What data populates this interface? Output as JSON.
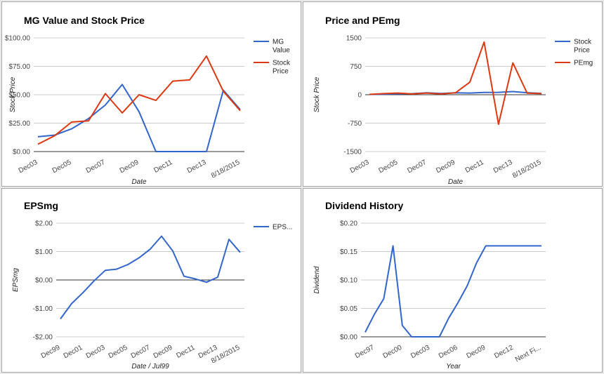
{
  "chart_data": [
    {
      "type": "line",
      "title": "MG Value and Stock Price",
      "xlabel": "Date",
      "ylabel": "Stock Price",
      "x_ticks": [
        "Dec03",
        "Dec05",
        "Dec07",
        "Dec09",
        "Dec11",
        "Dec13",
        "8/18/2015"
      ],
      "y_ticks": [
        "$0.00",
        "$25.00",
        "$50.00",
        "$75.00",
        "$100.00"
      ],
      "ylim": [
        0,
        100
      ],
      "x": [
        "Dec03",
        "Dec04",
        "Dec05",
        "Dec06",
        "Dec07",
        "Dec08",
        "Dec09",
        "Dec10",
        "Dec11",
        "Dec12",
        "Dec13",
        "Dec14",
        "8/18/2015"
      ],
      "series": [
        {
          "name": "MG Value",
          "color": "#3366cc",
          "values": [
            13,
            14.5,
            20,
            29,
            41,
            59,
            35,
            0,
            0,
            0,
            0,
            54,
            37
          ]
        },
        {
          "name": "Stock Price",
          "color": "#dc3912",
          "values": [
            6.5,
            14,
            26,
            27,
            51,
            34,
            50,
            45,
            62,
            63,
            84,
            53,
            36
          ]
        }
      ],
      "legend": "right",
      "grid": true
    },
    {
      "type": "line",
      "title": "Price and PEmg",
      "xlabel": "Date",
      "ylabel": "Stock Price",
      "x_ticks": [
        "Dec03",
        "Dec05",
        "Dec07",
        "Dec09",
        "Dec11",
        "Dec13",
        "8/18/2015"
      ],
      "y_ticks": [
        "-1500",
        "-750",
        "0",
        "750",
        "1500"
      ],
      "ylim": [
        -1500,
        1500
      ],
      "x": [
        "Dec03",
        "Dec04",
        "Dec05",
        "Dec06",
        "Dec07",
        "Dec08",
        "Dec09",
        "Dec10",
        "Dec11",
        "Dec12",
        "Dec13",
        "Dec14",
        "8/18/2015"
      ],
      "series": [
        {
          "name": "Stock Price",
          "color": "#3366cc",
          "values": [
            6.5,
            14,
            26,
            27,
            51,
            34,
            50,
            45,
            62,
            63,
            84,
            53,
            36
          ]
        },
        {
          "name": "PEmg",
          "color": "#dc3912",
          "values": [
            10,
            30,
            45,
            20,
            45,
            20,
            50,
            330,
            1390,
            -780,
            840,
            40,
            30
          ]
        }
      ],
      "legend": "right",
      "grid": true
    },
    {
      "type": "line",
      "title": "EPSmg",
      "xlabel": "Date / Jul99",
      "ylabel": "EPSmg",
      "x_ticks": [
        "Dec99",
        "Dec01",
        "Dec03",
        "Dec05",
        "Dec07",
        "Dec09",
        "Dec11",
        "Dec13",
        "8/18/2015"
      ],
      "y_ticks": [
        "-$2.00",
        "-$1.00",
        "$0.00",
        "$1.00",
        "$2.00"
      ],
      "ylim": [
        -2,
        2
      ],
      "x": [
        "Dec99",
        "Dec00",
        "Dec01",
        "Dec02",
        "Dec03",
        "Dec04",
        "Dec05",
        "Dec06",
        "Dec07",
        "Dec08",
        "Dec09",
        "Dec10",
        "Dec11",
        "Dec12",
        "Dec13",
        "Dec14",
        "8/18/2015"
      ],
      "series": [
        {
          "name": "EPS...",
          "color": "#3366cc",
          "values": [
            -1.37,
            -0.83,
            -0.45,
            -0.03,
            0.34,
            0.38,
            0.54,
            0.78,
            1.09,
            1.54,
            1.02,
            0.13,
            0.04,
            -0.08,
            0.1,
            1.43,
            0.97
          ]
        }
      ],
      "legend": "right",
      "grid": true
    },
    {
      "type": "line",
      "title": "Dividend History",
      "xlabel": "Year",
      "ylabel": "Dividend",
      "x_ticks": [
        "Dec97",
        "Dec00",
        "Dec03",
        "Dec06",
        "Dec09",
        "Dec12",
        "Next Fi..."
      ],
      "y_ticks": [
        "$0.00",
        "$0.05",
        "$0.10",
        "$0.15",
        "$0.20"
      ],
      "ylim": [
        0,
        0.2
      ],
      "x": [
        "Dec96",
        "Dec97",
        "Dec98",
        "Dec99",
        "Dec00",
        "Dec01",
        "Dec02",
        "Dec03",
        "Dec04",
        "Dec05",
        "Dec06",
        "Dec07",
        "Dec08",
        "Dec09",
        "Dec10",
        "Dec11",
        "Dec12",
        "Dec13",
        "Dec14",
        "Next Fi..."
      ],
      "series": [
        {
          "name": "",
          "color": "#3366cc",
          "values": [
            0.008,
            0.04,
            0.067,
            0.16,
            0.02,
            0,
            0,
            0,
            0,
            0.033,
            0.06,
            0.09,
            0.13,
            0.16,
            0.16,
            0.16,
            0.16,
            0.16,
            0.16,
            0.16
          ]
        }
      ],
      "legend": "none",
      "grid": true
    }
  ]
}
